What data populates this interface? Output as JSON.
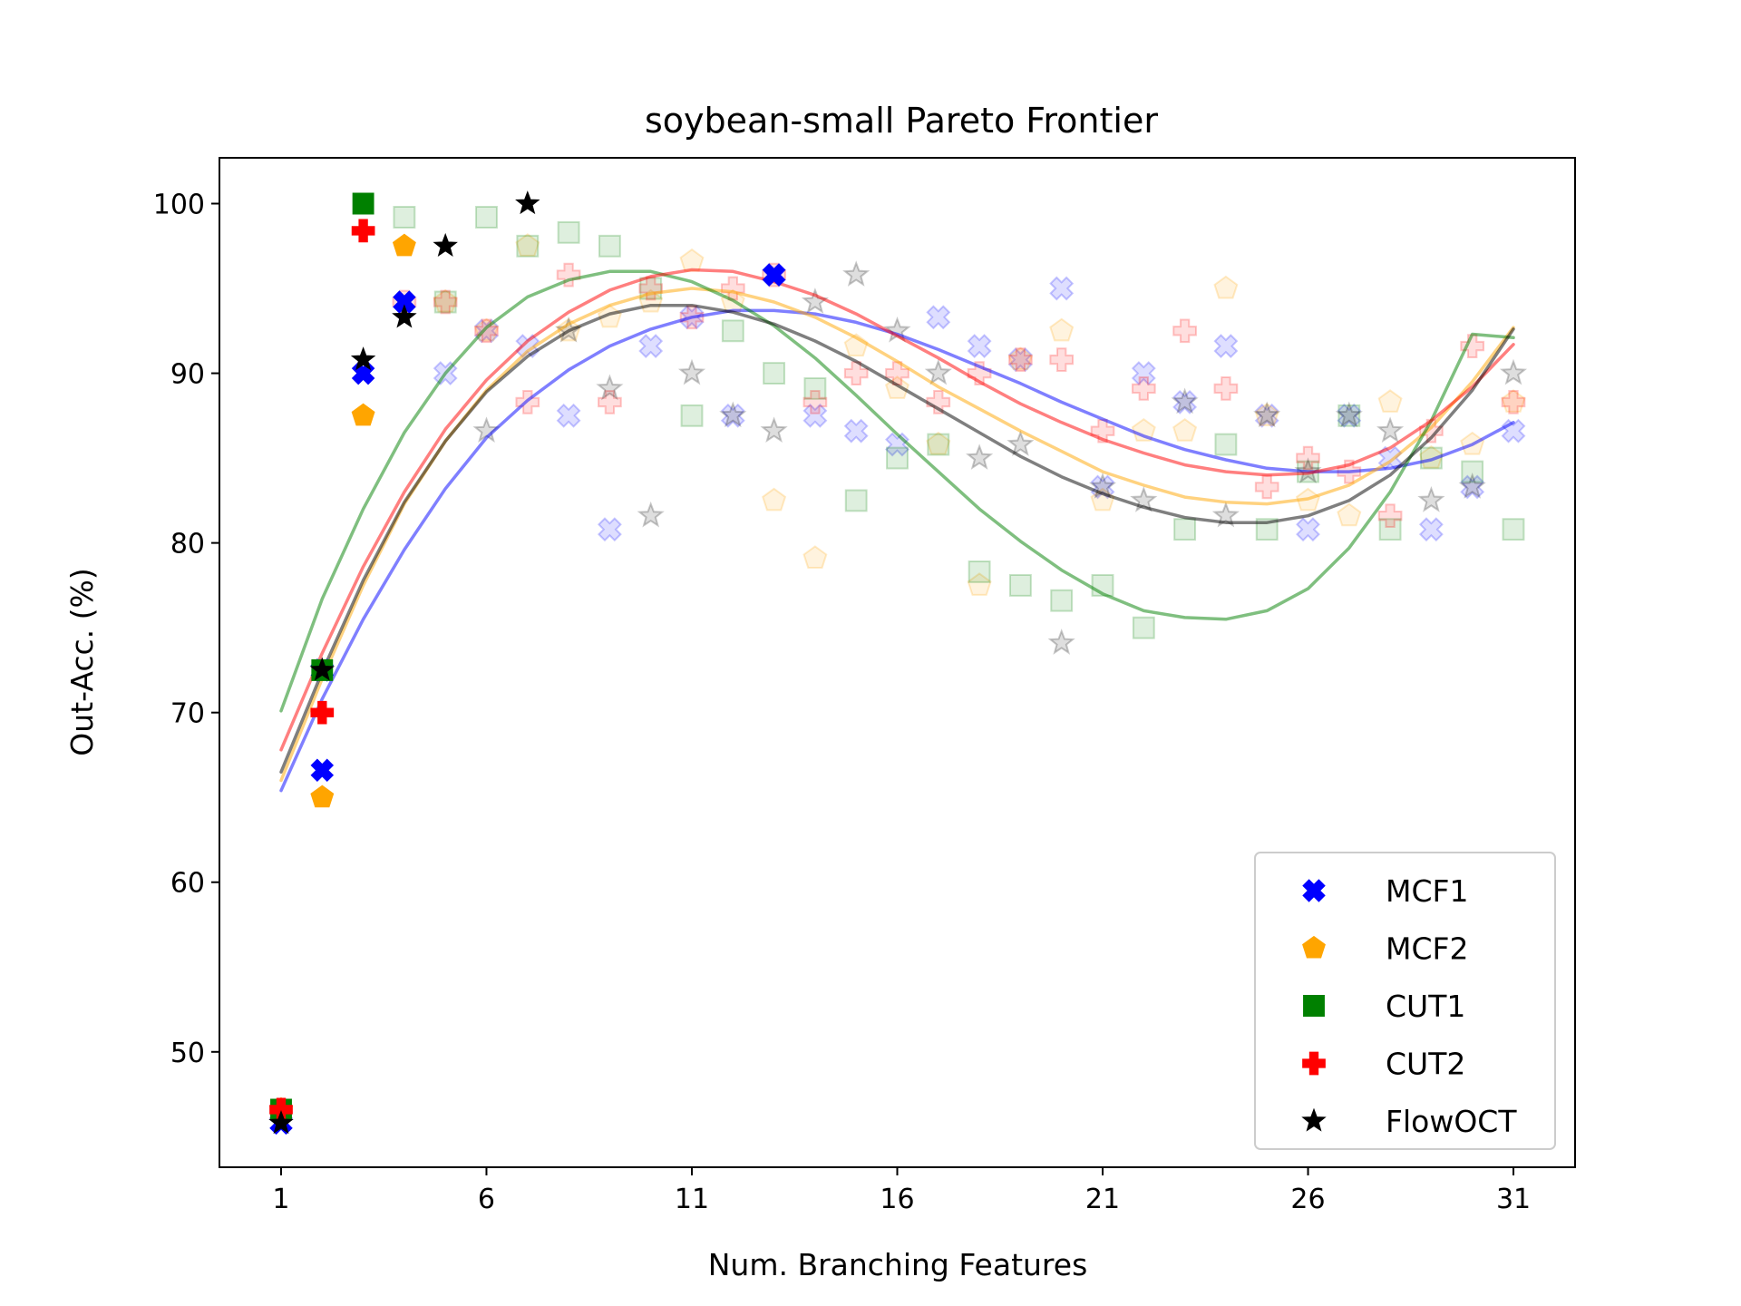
{
  "chart_data": {
    "type": "scatter",
    "title": "soybean-small Pareto Frontier",
    "xlabel": "Num. Branching Features",
    "ylabel": "Out-Acc. (%)",
    "xlim": [
      -0.5,
      32.5
    ],
    "ylim": [
      43.2,
      102.7
    ],
    "xticks": [
      1,
      6,
      11,
      16,
      21,
      26,
      31
    ],
    "yticks": [
      50,
      60,
      70,
      80,
      90,
      100
    ],
    "legend_position": "lower-right",
    "series": [
      {
        "name": "MCF1",
        "marker": "x-filled",
        "color": "#0000ff",
        "frontier": [
          [
            1,
            45.8
          ],
          [
            2,
            66.6
          ],
          [
            2,
            72.5
          ],
          [
            3,
            90.0
          ],
          [
            4,
            94.2
          ],
          [
            13,
            95.8
          ]
        ],
        "faded": [
          [
            5,
            90.0
          ],
          [
            6,
            92.5
          ],
          [
            7,
            91.6
          ],
          [
            8,
            87.5
          ],
          [
            9,
            80.8
          ],
          [
            10,
            91.6
          ],
          [
            11,
            93.3
          ],
          [
            12,
            87.5
          ],
          [
            13,
            95.8
          ],
          [
            14,
            87.5
          ],
          [
            15,
            86.6
          ],
          [
            16,
            85.8
          ],
          [
            17,
            93.3
          ],
          [
            18,
            91.6
          ],
          [
            19,
            90.8
          ],
          [
            20,
            95.0
          ],
          [
            21,
            83.3
          ],
          [
            22,
            90.0
          ],
          [
            23,
            88.3
          ],
          [
            24,
            91.6
          ],
          [
            25,
            87.5
          ],
          [
            26,
            80.8
          ],
          [
            27,
            87.5
          ],
          [
            28,
            85.0
          ],
          [
            29,
            80.8
          ],
          [
            30,
            83.3
          ],
          [
            31,
            86.6
          ]
        ],
        "trend": [
          [
            1,
            65.4
          ],
          [
            2,
            70.8
          ],
          [
            3,
            75.5
          ],
          [
            4,
            79.6
          ],
          [
            5,
            83.2
          ],
          [
            6,
            86.2
          ],
          [
            7,
            88.4
          ],
          [
            8,
            90.2
          ],
          [
            9,
            91.6
          ],
          [
            10,
            92.6
          ],
          [
            11,
            93.3
          ],
          [
            12,
            93.7
          ],
          [
            13,
            93.7
          ],
          [
            14,
            93.5
          ],
          [
            15,
            93.0
          ],
          [
            16,
            92.3
          ],
          [
            17,
            91.4
          ],
          [
            18,
            90.4
          ],
          [
            19,
            89.4
          ],
          [
            20,
            88.3
          ],
          [
            21,
            87.3
          ],
          [
            22,
            86.3
          ],
          [
            23,
            85.5
          ],
          [
            24,
            84.9
          ],
          [
            25,
            84.4
          ],
          [
            26,
            84.2
          ],
          [
            27,
            84.2
          ],
          [
            28,
            84.4
          ],
          [
            29,
            84.9
          ],
          [
            30,
            85.8
          ],
          [
            31,
            87.1
          ]
        ]
      },
      {
        "name": "MCF2",
        "marker": "pentagon",
        "color": "#ffa500",
        "frontier": [
          [
            1,
            46.6
          ],
          [
            2,
            65.0
          ],
          [
            3,
            87.5
          ],
          [
            4,
            97.5
          ]
        ],
        "faded": [
          [
            5,
            94.2
          ],
          [
            6,
            92.5
          ],
          [
            7,
            97.5
          ],
          [
            8,
            92.5
          ],
          [
            9,
            93.3
          ],
          [
            10,
            94.2
          ],
          [
            11,
            96.6
          ],
          [
            12,
            94.2
          ],
          [
            13,
            82.5
          ],
          [
            14,
            79.1
          ],
          [
            15,
            91.6
          ],
          [
            16,
            89.1
          ],
          [
            17,
            85.8
          ],
          [
            18,
            77.5
          ],
          [
            19,
            90.8
          ],
          [
            20,
            92.5
          ],
          [
            21,
            82.5
          ],
          [
            22,
            86.6
          ],
          [
            23,
            86.6
          ],
          [
            24,
            95.0
          ],
          [
            25,
            87.5
          ],
          [
            26,
            82.5
          ],
          [
            27,
            81.6
          ],
          [
            28,
            88.3
          ],
          [
            29,
            85.0
          ],
          [
            30,
            85.8
          ],
          [
            31,
            88.3
          ]
        ],
        "trend": [
          [
            1,
            66.0
          ],
          [
            2,
            72.0
          ],
          [
            3,
            77.5
          ],
          [
            4,
            82.3
          ],
          [
            5,
            86.0
          ],
          [
            6,
            89.0
          ],
          [
            7,
            91.3
          ],
          [
            8,
            92.9
          ],
          [
            9,
            94.0
          ],
          [
            10,
            94.7
          ],
          [
            11,
            95.0
          ],
          [
            12,
            94.8
          ],
          [
            13,
            94.2
          ],
          [
            14,
            93.3
          ],
          [
            15,
            92.1
          ],
          [
            16,
            90.7
          ],
          [
            17,
            89.2
          ],
          [
            18,
            87.9
          ],
          [
            19,
            86.6
          ],
          [
            20,
            85.4
          ],
          [
            21,
            84.2
          ],
          [
            22,
            83.4
          ],
          [
            23,
            82.7
          ],
          [
            24,
            82.4
          ],
          [
            25,
            82.3
          ],
          [
            26,
            82.6
          ],
          [
            27,
            83.4
          ],
          [
            28,
            84.8
          ],
          [
            29,
            86.8
          ],
          [
            30,
            89.5
          ],
          [
            31,
            92.7
          ]
        ]
      },
      {
        "name": "CUT1",
        "marker": "square",
        "color": "#008000",
        "frontier": [
          [
            1,
            46.6
          ],
          [
            2,
            72.5
          ],
          [
            3,
            100.0
          ]
        ],
        "faded": [
          [
            4,
            99.2
          ],
          [
            5,
            94.2
          ],
          [
            6,
            99.2
          ],
          [
            7,
            97.5
          ],
          [
            8,
            98.3
          ],
          [
            9,
            97.5
          ],
          [
            10,
            95.0
          ],
          [
            11,
            87.5
          ],
          [
            12,
            92.5
          ],
          [
            13,
            90.0
          ],
          [
            14,
            89.1
          ],
          [
            15,
            82.5
          ],
          [
            16,
            85.0
          ],
          [
            17,
            85.8
          ],
          [
            18,
            78.3
          ],
          [
            19,
            77.5
          ],
          [
            20,
            76.6
          ],
          [
            21,
            77.5
          ],
          [
            22,
            75.0
          ],
          [
            23,
            80.8
          ],
          [
            24,
            85.8
          ],
          [
            25,
            80.8
          ],
          [
            26,
            84.2
          ],
          [
            27,
            87.5
          ],
          [
            28,
            80.8
          ],
          [
            29,
            85.0
          ],
          [
            30,
            84.2
          ],
          [
            31,
            80.8
          ]
        ],
        "trend": [
          [
            1,
            70.1
          ],
          [
            2,
            76.7
          ],
          [
            3,
            82.0
          ],
          [
            4,
            86.5
          ],
          [
            5,
            90.0
          ],
          [
            6,
            92.7
          ],
          [
            7,
            94.5
          ],
          [
            8,
            95.5
          ],
          [
            9,
            96.0
          ],
          [
            10,
            96.0
          ],
          [
            11,
            95.4
          ],
          [
            12,
            94.3
          ],
          [
            13,
            92.8
          ],
          [
            14,
            90.9
          ],
          [
            15,
            88.7
          ],
          [
            16,
            86.4
          ],
          [
            17,
            84.2
          ],
          [
            18,
            82.0
          ],
          [
            19,
            80.1
          ],
          [
            20,
            78.4
          ],
          [
            21,
            77.0
          ],
          [
            22,
            76.0
          ],
          [
            23,
            75.6
          ],
          [
            24,
            75.5
          ],
          [
            25,
            76.0
          ],
          [
            26,
            77.3
          ],
          [
            27,
            79.7
          ],
          [
            28,
            83.0
          ],
          [
            29,
            87.2
          ],
          [
            30,
            92.3
          ],
          [
            31,
            92.1
          ]
        ]
      },
      {
        "name": "CUT2",
        "marker": "plus-filled",
        "color": "#ff0000",
        "frontier": [
          [
            1,
            46.6
          ],
          [
            2,
            70.0
          ],
          [
            3,
            98.4
          ]
        ],
        "faded": [
          [
            4,
            94.2
          ],
          [
            5,
            94.2
          ],
          [
            6,
            92.5
          ],
          [
            7,
            88.3
          ],
          [
            8,
            95.8
          ],
          [
            9,
            88.3
          ],
          [
            10,
            95.0
          ],
          [
            11,
            93.3
          ],
          [
            12,
            95.0
          ],
          [
            13,
            95.8
          ],
          [
            14,
            88.3
          ],
          [
            15,
            90.0
          ],
          [
            16,
            90.0
          ],
          [
            17,
            88.3
          ],
          [
            18,
            90.0
          ],
          [
            19,
            90.8
          ],
          [
            20,
            90.8
          ],
          [
            21,
            86.6
          ],
          [
            22,
            89.1
          ],
          [
            23,
            92.5
          ],
          [
            24,
            89.1
          ],
          [
            25,
            83.3
          ],
          [
            26,
            85.0
          ],
          [
            27,
            84.2
          ],
          [
            28,
            81.6
          ],
          [
            29,
            86.6
          ],
          [
            30,
            91.6
          ],
          [
            31,
            88.3
          ]
        ],
        "trend": [
          [
            1,
            67.8
          ],
          [
            2,
            73.5
          ],
          [
            3,
            78.6
          ],
          [
            4,
            83.0
          ],
          [
            5,
            86.7
          ],
          [
            6,
            89.6
          ],
          [
            7,
            91.9
          ],
          [
            8,
            93.6
          ],
          [
            9,
            94.9
          ],
          [
            10,
            95.7
          ],
          [
            11,
            96.1
          ],
          [
            12,
            96.0
          ],
          [
            13,
            95.4
          ],
          [
            14,
            94.6
          ],
          [
            15,
            93.5
          ],
          [
            16,
            92.2
          ],
          [
            17,
            90.9
          ],
          [
            18,
            89.5
          ],
          [
            19,
            88.2
          ],
          [
            20,
            87.1
          ],
          [
            21,
            86.1
          ],
          [
            22,
            85.3
          ],
          [
            23,
            84.6
          ],
          [
            24,
            84.2
          ],
          [
            25,
            84.0
          ],
          [
            26,
            84.1
          ],
          [
            27,
            84.6
          ],
          [
            28,
            85.6
          ],
          [
            29,
            87.2
          ],
          [
            30,
            89.2
          ],
          [
            31,
            91.7
          ]
        ]
      },
      {
        "name": "FlowOCT",
        "marker": "star",
        "color": "#000000",
        "frontier": [
          [
            1,
            45.8
          ],
          [
            2,
            72.5
          ],
          [
            3,
            90.8
          ],
          [
            4,
            93.3
          ],
          [
            5,
            97.5
          ],
          [
            7,
            100.0
          ]
        ],
        "faded": [
          [
            6,
            86.6
          ],
          [
            8,
            92.5
          ],
          [
            9,
            89.1
          ],
          [
            10,
            81.6
          ],
          [
            11,
            90.0
          ],
          [
            12,
            87.5
          ],
          [
            13,
            86.6
          ],
          [
            14,
            94.2
          ],
          [
            15,
            95.8
          ],
          [
            16,
            92.5
          ],
          [
            17,
            90.0
          ],
          [
            18,
            85.0
          ],
          [
            19,
            85.8
          ],
          [
            20,
            74.1
          ],
          [
            21,
            83.3
          ],
          [
            22,
            82.5
          ],
          [
            23,
            88.3
          ],
          [
            24,
            81.6
          ],
          [
            25,
            87.5
          ],
          [
            26,
            84.2
          ],
          [
            27,
            87.5
          ],
          [
            28,
            86.6
          ],
          [
            29,
            82.5
          ],
          [
            30,
            83.3
          ],
          [
            31,
            90.0
          ]
        ],
        "trend": [
          [
            1,
            66.5
          ],
          [
            2,
            72.4
          ],
          [
            3,
            77.8
          ],
          [
            4,
            82.4
          ],
          [
            5,
            86.0
          ],
          [
            6,
            88.9
          ],
          [
            7,
            91.0
          ],
          [
            8,
            92.5
          ],
          [
            9,
            93.5
          ],
          [
            10,
            94.0
          ],
          [
            11,
            94.0
          ],
          [
            12,
            93.6
          ],
          [
            13,
            92.9
          ],
          [
            14,
            91.9
          ],
          [
            15,
            90.7
          ],
          [
            16,
            89.3
          ],
          [
            17,
            87.9
          ],
          [
            18,
            86.5
          ],
          [
            19,
            85.1
          ],
          [
            20,
            83.9
          ],
          [
            21,
            82.9
          ],
          [
            22,
            82.1
          ],
          [
            23,
            81.5
          ],
          [
            24,
            81.2
          ],
          [
            25,
            81.2
          ],
          [
            26,
            81.6
          ],
          [
            27,
            82.5
          ],
          [
            28,
            84.0
          ],
          [
            29,
            86.2
          ],
          [
            30,
            89.0
          ],
          [
            31,
            92.6
          ]
        ]
      }
    ]
  }
}
